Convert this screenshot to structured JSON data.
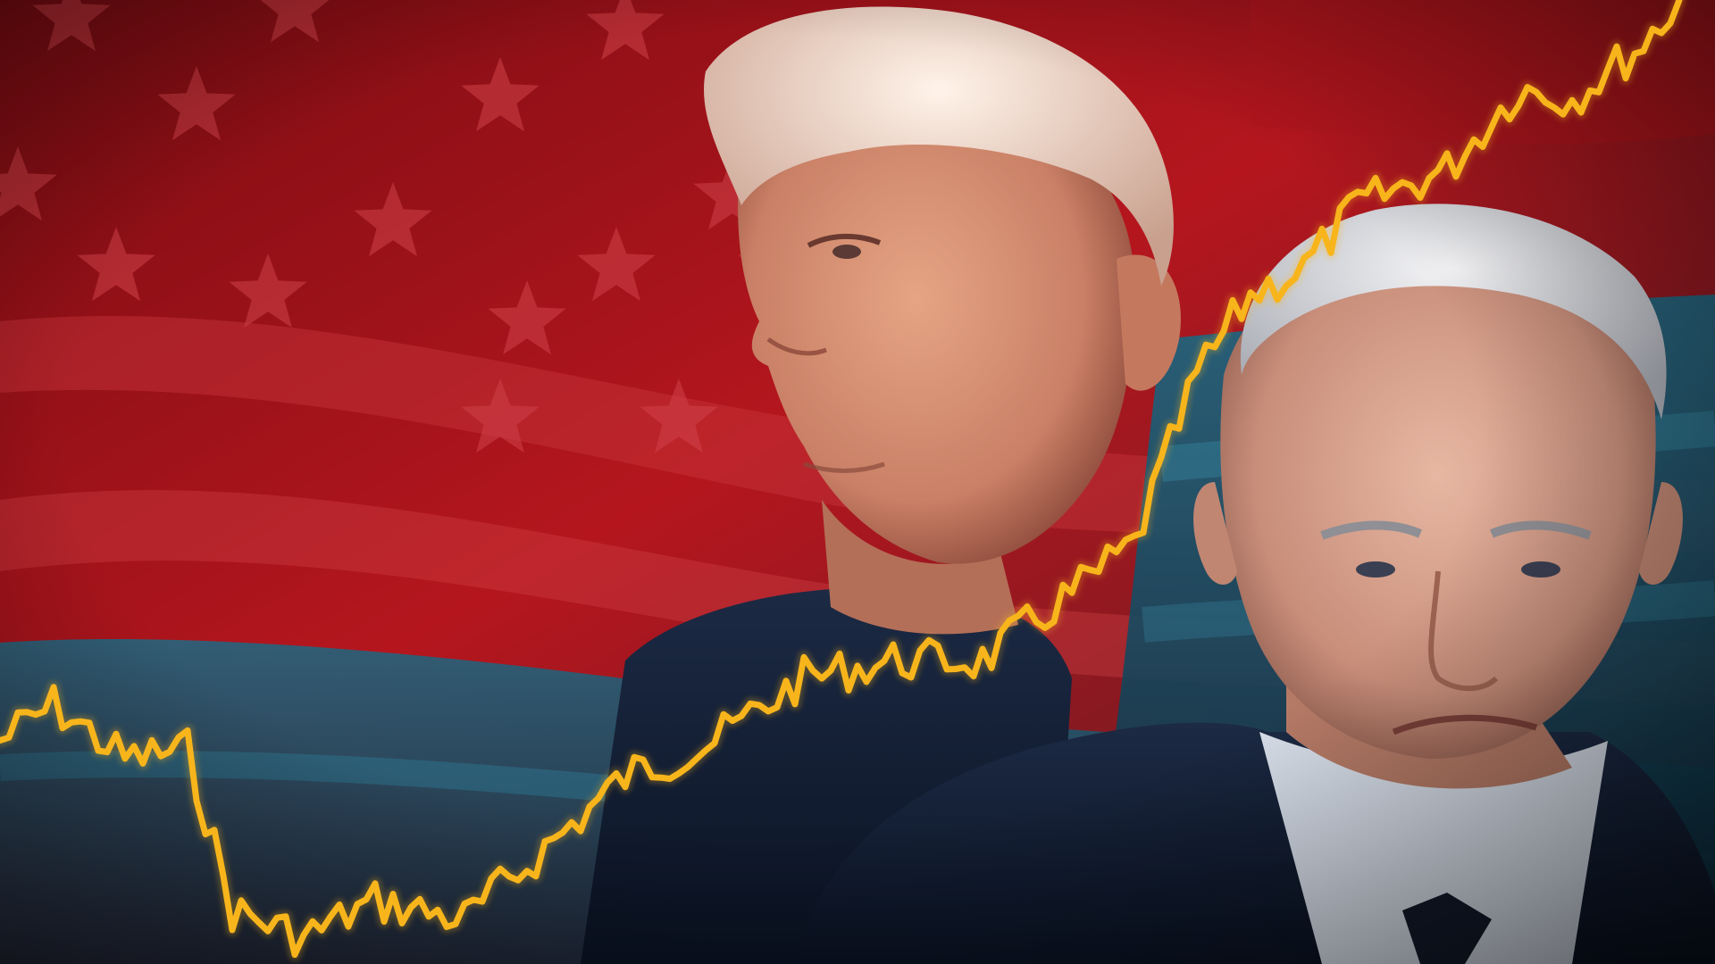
{
  "image": {
    "kind": "photo-composite",
    "subjects": [
      "man-left-profile",
      "man-right-portrait"
    ],
    "background": "waving-american-flag"
  },
  "colors": {
    "flag_red": "#a8141c",
    "flag_red_dark": "#5e0a10",
    "flag_blue": "#1f6d86",
    "flag_blue_dark": "#0f3345",
    "star": "#cf4149",
    "line": "#f8b51b",
    "suit_navy": "#142033",
    "skin_left": "#d69274",
    "skin_right": "#d8a48e",
    "hair_left": "#efd8c8",
    "hair_right": "#dfdfe3"
  },
  "line_overlay": {
    "shape": "rising-jagged-line",
    "trend": "up",
    "color": "#f8b51b"
  }
}
